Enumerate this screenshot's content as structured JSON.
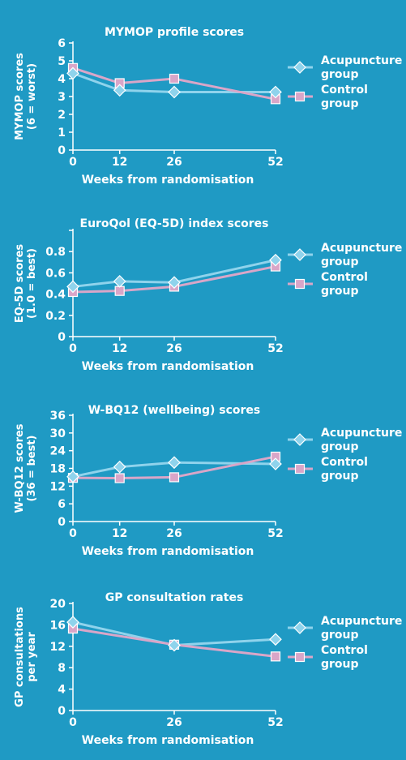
{
  "colors": {
    "background": "#1f9ac4",
    "axis": "#ffffff",
    "acupuncture": "#8fd3ec",
    "control": "#d9a6c8",
    "text": "#ffffff"
  },
  "chart_data": [
    {
      "type": "line",
      "title": "MYMOP profile scores",
      "ylabel_lines": [
        "MYMOP scores",
        "(6 = worst)"
      ],
      "xlabel": "Weeks from randomisation",
      "x": [
        0,
        12,
        26,
        52
      ],
      "xticks": [
        "0",
        "12",
        "26",
        "52"
      ],
      "xlim": [
        0,
        52
      ],
      "ylim": [
        0,
        6
      ],
      "yticks": [
        "0",
        "1",
        "2",
        "3",
        "4",
        "5",
        "6"
      ],
      "series": [
        {
          "key": "acupuncture",
          "name_lines": [
            "Acupuncture",
            "group"
          ],
          "marker": "diamond",
          "values": [
            4.3,
            3.35,
            3.25,
            3.25
          ]
        },
        {
          "key": "control",
          "name_lines": [
            "Control",
            "group"
          ],
          "marker": "square",
          "values": [
            4.6,
            3.75,
            4.0,
            2.85
          ]
        }
      ]
    },
    {
      "type": "line",
      "title": "EuroQol (EQ-5D) index scores",
      "ylabel_lines": [
        "EQ-5D scores",
        "(1.0 = best)"
      ],
      "xlabel": "Weeks from randomisation",
      "x": [
        0,
        12,
        26,
        52
      ],
      "xticks": [
        "0",
        "12",
        "26",
        "52"
      ],
      "xlim": [
        0,
        52
      ],
      "ylim": [
        0,
        1.0
      ],
      "yticks": [
        "0",
        "0.2",
        "0.4",
        "0.6",
        "0.8",
        ""
      ],
      "series": [
        {
          "key": "acupuncture",
          "name_lines": [
            "Acupuncture",
            "group"
          ],
          "marker": "diamond",
          "values": [
            0.47,
            0.52,
            0.51,
            0.72
          ]
        },
        {
          "key": "control",
          "name_lines": [
            "Control",
            "group"
          ],
          "marker": "square",
          "values": [
            0.42,
            0.43,
            0.47,
            0.66
          ]
        }
      ]
    },
    {
      "type": "line",
      "title": "W-BQ12 (wellbeing) scores",
      "ylabel_lines": [
        "W-BQ12 scores",
        "(36 = best)"
      ],
      "xlabel": "Weeks from randomisation",
      "x": [
        0,
        12,
        26,
        52
      ],
      "xticks": [
        "0",
        "12",
        "26",
        "52"
      ],
      "xlim": [
        0,
        52
      ],
      "ylim": [
        0,
        36
      ],
      "yticks": [
        "0",
        "6",
        "12",
        "18",
        "24",
        "30",
        "36"
      ],
      "series": [
        {
          "key": "acupuncture",
          "name_lines": [
            "Acupuncture",
            "group"
          ],
          "marker": "diamond",
          "values": [
            15.2,
            18.5,
            20.0,
            19.5
          ]
        },
        {
          "key": "control",
          "name_lines": [
            "Control",
            "group"
          ],
          "marker": "square",
          "values": [
            14.8,
            14.7,
            15.0,
            22.0
          ]
        }
      ]
    },
    {
      "type": "line",
      "title": "GP consultation rates",
      "ylabel_lines": [
        "GP consultations",
        "per year"
      ],
      "xlabel": "Weeks from randomisation",
      "x": [
        0,
        26,
        52
      ],
      "xticks": [
        "0",
        "26",
        "52"
      ],
      "xlim": [
        0,
        52
      ],
      "ylim": [
        0,
        20
      ],
      "yticks": [
        "0",
        "4",
        "8",
        "12",
        "16",
        "20"
      ],
      "series": [
        {
          "key": "acupuncture",
          "name_lines": [
            "Acupuncture",
            "group"
          ],
          "marker": "diamond",
          "values": [
            16.5,
            12.2,
            13.3
          ]
        },
        {
          "key": "control",
          "name_lines": [
            "Control",
            "group"
          ],
          "marker": "square",
          "values": [
            15.3,
            12.3,
            10.1
          ]
        }
      ]
    }
  ]
}
